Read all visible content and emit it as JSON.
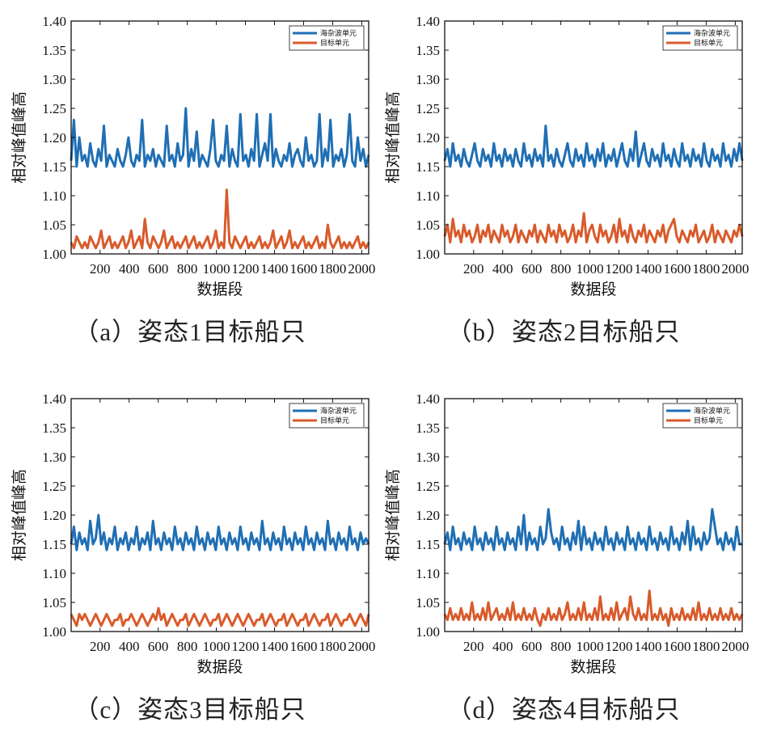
{
  "chart_data": [
    {
      "type": "line",
      "caption": "（a）姿态1目标船只",
      "xlabel": "数据段",
      "ylabel": "相对峰值峰高",
      "xlim": [
        1,
        2048
      ],
      "ylim": [
        1.0,
        1.4
      ],
      "xticks": [
        200,
        400,
        600,
        800,
        1000,
        1200,
        1400,
        1600,
        1800,
        2000
      ],
      "yticks": [
        "1.00",
        "1.05",
        "1.10",
        "1.15",
        "1.20",
        "1.25",
        "1.30",
        "1.35",
        "1.40"
      ],
      "grid": false,
      "legend": "top-right",
      "series": [
        {
          "name": "海杂波单元",
          "color": "#1f6fb4",
          "values": [
            1.16,
            1.23,
            1.15,
            1.2,
            1.16,
            1.17,
            1.15,
            1.19,
            1.16,
            1.15,
            1.18,
            1.16,
            1.22,
            1.15,
            1.17,
            1.16,
            1.15,
            1.18,
            1.16,
            1.15,
            1.17,
            1.2,
            1.16,
            1.15,
            1.17,
            1.16,
            1.23,
            1.15,
            1.17,
            1.16,
            1.18,
            1.15,
            1.17,
            1.16,
            1.15,
            1.22,
            1.16,
            1.17,
            1.15,
            1.19,
            1.16,
            1.17,
            1.25,
            1.15,
            1.18,
            1.16,
            1.21,
            1.15,
            1.17,
            1.16,
            1.15,
            1.18,
            1.23,
            1.16,
            1.15,
            1.17,
            1.16,
            1.22,
            1.15,
            1.18,
            1.16,
            1.15,
            1.24,
            1.16,
            1.17,
            1.15,
            1.18,
            1.16,
            1.24,
            1.15,
            1.17,
            1.19,
            1.16,
            1.24,
            1.15,
            1.18,
            1.16,
            1.15,
            1.17,
            1.16,
            1.19,
            1.15,
            1.17,
            1.18,
            1.16,
            1.15,
            1.2,
            1.16,
            1.17,
            1.15,
            1.16,
            1.24,
            1.15,
            1.18,
            1.16,
            1.23,
            1.15,
            1.17,
            1.16,
            1.18,
            1.15,
            1.17,
            1.24,
            1.16,
            1.15,
            1.2,
            1.16,
            1.18,
            1.15,
            1.17
          ]
        },
        {
          "name": "目标单元",
          "color": "#d95a2b",
          "values": [
            1.02,
            1.01,
            1.03,
            1.02,
            1.01,
            1.02,
            1.01,
            1.03,
            1.02,
            1.01,
            1.02,
            1.04,
            1.01,
            1.02,
            1.03,
            1.01,
            1.02,
            1.01,
            1.02,
            1.03,
            1.01,
            1.02,
            1.04,
            1.01,
            1.02,
            1.03,
            1.01,
            1.06,
            1.02,
            1.01,
            1.03,
            1.02,
            1.01,
            1.02,
            1.04,
            1.01,
            1.02,
            1.03,
            1.01,
            1.02,
            1.01,
            1.02,
            1.03,
            1.01,
            1.02,
            1.03,
            1.01,
            1.02,
            1.01,
            1.02,
            1.03,
            1.01,
            1.02,
            1.04,
            1.01,
            1.02,
            1.01,
            1.11,
            1.02,
            1.01,
            1.03,
            1.02,
            1.01,
            1.02,
            1.03,
            1.01,
            1.02,
            1.01,
            1.02,
            1.03,
            1.01,
            1.02,
            1.01,
            1.02,
            1.04,
            1.01,
            1.02,
            1.03,
            1.01,
            1.02,
            1.04,
            1.01,
            1.02,
            1.01,
            1.02,
            1.03,
            1.01,
            1.02,
            1.01,
            1.02,
            1.03,
            1.01,
            1.02,
            1.01,
            1.05,
            1.02,
            1.01,
            1.02,
            1.03,
            1.01,
            1.02,
            1.01,
            1.02,
            1.01,
            1.02,
            1.03,
            1.01,
            1.02,
            1.01,
            1.02
          ]
        }
      ]
    },
    {
      "type": "line",
      "caption": "（b）姿态2目标船只",
      "xlabel": "数据段",
      "ylabel": "相对峰值峰高",
      "xlim": [
        1,
        2048
      ],
      "ylim": [
        1.0,
        1.4
      ],
      "xticks": [
        200,
        400,
        600,
        800,
        1000,
        1200,
        1400,
        1600,
        1800,
        2000
      ],
      "yticks": [
        "1.00",
        "1.05",
        "1.10",
        "1.15",
        "1.20",
        "1.25",
        "1.30",
        "1.35",
        "1.40"
      ],
      "grid": false,
      "legend": "top-right",
      "series": [
        {
          "name": "海杂波单元",
          "color": "#1f6fb4",
          "values": [
            1.16,
            1.18,
            1.15,
            1.19,
            1.16,
            1.17,
            1.15,
            1.18,
            1.16,
            1.15,
            1.17,
            1.19,
            1.16,
            1.15,
            1.18,
            1.16,
            1.17,
            1.15,
            1.19,
            1.16,
            1.17,
            1.15,
            1.18,
            1.16,
            1.17,
            1.15,
            1.18,
            1.16,
            1.15,
            1.19,
            1.16,
            1.17,
            1.15,
            1.18,
            1.16,
            1.17,
            1.15,
            1.22,
            1.16,
            1.17,
            1.15,
            1.18,
            1.16,
            1.15,
            1.17,
            1.19,
            1.16,
            1.15,
            1.18,
            1.16,
            1.17,
            1.15,
            1.19,
            1.16,
            1.17,
            1.15,
            1.18,
            1.16,
            1.19,
            1.15,
            1.17,
            1.16,
            1.18,
            1.15,
            1.17,
            1.19,
            1.16,
            1.15,
            1.18,
            1.16,
            1.21,
            1.15,
            1.17,
            1.19,
            1.16,
            1.15,
            1.18,
            1.16,
            1.17,
            1.15,
            1.19,
            1.16,
            1.17,
            1.15,
            1.18,
            1.16,
            1.15,
            1.19,
            1.16,
            1.17,
            1.15,
            1.18,
            1.16,
            1.17,
            1.15,
            1.19,
            1.16,
            1.15,
            1.18,
            1.16,
            1.17,
            1.15,
            1.19,
            1.16,
            1.17,
            1.15,
            1.18,
            1.16,
            1.19,
            1.16
          ]
        },
        {
          "name": "目标单元",
          "color": "#d95a2b",
          "values": [
            1.03,
            1.05,
            1.02,
            1.06,
            1.03,
            1.04,
            1.02,
            1.05,
            1.03,
            1.04,
            1.02,
            1.03,
            1.05,
            1.02,
            1.04,
            1.03,
            1.05,
            1.02,
            1.04,
            1.03,
            1.02,
            1.05,
            1.03,
            1.04,
            1.02,
            1.03,
            1.05,
            1.02,
            1.04,
            1.03,
            1.02,
            1.04,
            1.03,
            1.05,
            1.02,
            1.04,
            1.03,
            1.02,
            1.05,
            1.03,
            1.04,
            1.02,
            1.05,
            1.03,
            1.04,
            1.02,
            1.03,
            1.05,
            1.02,
            1.04,
            1.03,
            1.07,
            1.02,
            1.04,
            1.05,
            1.03,
            1.02,
            1.05,
            1.03,
            1.04,
            1.02,
            1.03,
            1.05,
            1.02,
            1.06,
            1.03,
            1.04,
            1.02,
            1.05,
            1.03,
            1.02,
            1.04,
            1.03,
            1.05,
            1.02,
            1.04,
            1.03,
            1.02,
            1.04,
            1.03,
            1.05,
            1.02,
            1.04,
            1.05,
            1.06,
            1.03,
            1.02,
            1.04,
            1.03,
            1.02,
            1.04,
            1.03,
            1.05,
            1.02,
            1.03,
            1.04,
            1.02,
            1.03,
            1.05,
            1.02,
            1.04,
            1.03,
            1.02,
            1.04,
            1.03,
            1.02,
            1.04,
            1.03,
            1.05,
            1.03
          ]
        }
      ]
    },
    {
      "type": "line",
      "caption": "（c）姿态3目标船只",
      "xlabel": "数据段",
      "ylabel": "相对峰值峰高",
      "xlim": [
        1,
        2048
      ],
      "ylim": [
        1.0,
        1.4
      ],
      "xticks": [
        200,
        400,
        600,
        800,
        1000,
        1200,
        1400,
        1600,
        1800,
        2000
      ],
      "yticks": [
        "1.00",
        "1.05",
        "1.10",
        "1.15",
        "1.20",
        "1.25",
        "1.30",
        "1.35",
        "1.40"
      ],
      "grid": false,
      "legend": "top-right",
      "series": [
        {
          "name": "海杂波单元",
          "color": "#1f6fb4",
          "values": [
            1.15,
            1.18,
            1.14,
            1.17,
            1.15,
            1.16,
            1.14,
            1.19,
            1.15,
            1.16,
            1.2,
            1.15,
            1.17,
            1.14,
            1.16,
            1.15,
            1.18,
            1.14,
            1.16,
            1.15,
            1.17,
            1.14,
            1.16,
            1.15,
            1.18,
            1.14,
            1.16,
            1.15,
            1.17,
            1.14,
            1.19,
            1.15,
            1.16,
            1.14,
            1.17,
            1.15,
            1.16,
            1.14,
            1.18,
            1.15,
            1.16,
            1.14,
            1.17,
            1.15,
            1.16,
            1.14,
            1.18,
            1.15,
            1.16,
            1.14,
            1.17,
            1.15,
            1.16,
            1.14,
            1.18,
            1.15,
            1.16,
            1.14,
            1.17,
            1.15,
            1.16,
            1.14,
            1.18,
            1.15,
            1.16,
            1.14,
            1.17,
            1.15,
            1.16,
            1.14,
            1.19,
            1.15,
            1.16,
            1.14,
            1.17,
            1.15,
            1.16,
            1.14,
            1.18,
            1.15,
            1.16,
            1.14,
            1.17,
            1.15,
            1.16,
            1.14,
            1.18,
            1.15,
            1.16,
            1.14,
            1.17,
            1.15,
            1.16,
            1.14,
            1.19,
            1.15,
            1.16,
            1.14,
            1.17,
            1.15,
            1.16,
            1.14,
            1.18,
            1.15,
            1.16,
            1.14,
            1.17,
            1.15,
            1.16,
            1.15
          ]
        },
        {
          "name": "目标单元",
          "color": "#d95a2b",
          "values": [
            1.03,
            1.02,
            1.01,
            1.03,
            1.02,
            1.03,
            1.02,
            1.01,
            1.02,
            1.03,
            1.02,
            1.01,
            1.02,
            1.03,
            1.02,
            1.01,
            1.02,
            1.02,
            1.03,
            1.01,
            1.02,
            1.02,
            1.03,
            1.02,
            1.01,
            1.02,
            1.03,
            1.02,
            1.01,
            1.02,
            1.03,
            1.02,
            1.04,
            1.02,
            1.03,
            1.01,
            1.02,
            1.03,
            1.02,
            1.01,
            1.02,
            1.02,
            1.03,
            1.01,
            1.02,
            1.03,
            1.02,
            1.01,
            1.02,
            1.03,
            1.02,
            1.01,
            1.02,
            1.02,
            1.03,
            1.01,
            1.02,
            1.03,
            1.02,
            1.01,
            1.02,
            1.03,
            1.02,
            1.01,
            1.02,
            1.03,
            1.02,
            1.01,
            1.02,
            1.02,
            1.03,
            1.01,
            1.02,
            1.03,
            1.02,
            1.01,
            1.02,
            1.02,
            1.03,
            1.01,
            1.02,
            1.03,
            1.02,
            1.01,
            1.02,
            1.02,
            1.03,
            1.01,
            1.02,
            1.03,
            1.02,
            1.01,
            1.02,
            1.02,
            1.03,
            1.01,
            1.02,
            1.03,
            1.02,
            1.01,
            1.02,
            1.02,
            1.03,
            1.02,
            1.01,
            1.02,
            1.03,
            1.02,
            1.01,
            1.03
          ]
        }
      ]
    },
    {
      "type": "line",
      "caption": "（d）姿态4目标船只",
      "xlabel": "数据段",
      "ylabel": "相对峰值峰高",
      "xlim": [
        1,
        2048
      ],
      "ylim": [
        1.0,
        1.4
      ],
      "xticks": [
        200,
        400,
        600,
        800,
        1000,
        1200,
        1400,
        1600,
        1800,
        2000
      ],
      "yticks": [
        "1.00",
        "1.05",
        "1.10",
        "1.15",
        "1.20",
        "1.25",
        "1.30",
        "1.35",
        "1.40"
      ],
      "grid": false,
      "legend": "top-right",
      "series": [
        {
          "name": "海杂波单元",
          "color": "#1f6fb4",
          "values": [
            1.15,
            1.17,
            1.14,
            1.18,
            1.15,
            1.16,
            1.14,
            1.17,
            1.15,
            1.16,
            1.14,
            1.18,
            1.15,
            1.16,
            1.14,
            1.17,
            1.15,
            1.16,
            1.14,
            1.18,
            1.15,
            1.16,
            1.14,
            1.17,
            1.15,
            1.16,
            1.14,
            1.18,
            1.15,
            1.2,
            1.14,
            1.17,
            1.15,
            1.16,
            1.14,
            1.18,
            1.15,
            1.16,
            1.21,
            1.17,
            1.15,
            1.16,
            1.14,
            1.18,
            1.15,
            1.16,
            1.14,
            1.17,
            1.15,
            1.19,
            1.14,
            1.18,
            1.15,
            1.16,
            1.14,
            1.17,
            1.15,
            1.16,
            1.14,
            1.18,
            1.15,
            1.16,
            1.14,
            1.17,
            1.15,
            1.16,
            1.14,
            1.18,
            1.15,
            1.16,
            1.14,
            1.17,
            1.15,
            1.16,
            1.14,
            1.18,
            1.15,
            1.16,
            1.14,
            1.17,
            1.15,
            1.16,
            1.14,
            1.18,
            1.15,
            1.16,
            1.14,
            1.17,
            1.15,
            1.19,
            1.14,
            1.18,
            1.15,
            1.16,
            1.14,
            1.17,
            1.15,
            1.16,
            1.21,
            1.18,
            1.15,
            1.16,
            1.14,
            1.17,
            1.15,
            1.16,
            1.14,
            1.18,
            1.15,
            1.15
          ]
        },
        {
          "name": "目标单元",
          "color": "#d95a2b",
          "values": [
            1.03,
            1.02,
            1.04,
            1.02,
            1.03,
            1.02,
            1.04,
            1.02,
            1.03,
            1.02,
            1.05,
            1.02,
            1.03,
            1.02,
            1.04,
            1.02,
            1.05,
            1.02,
            1.03,
            1.04,
            1.02,
            1.03,
            1.02,
            1.04,
            1.02,
            1.05,
            1.02,
            1.03,
            1.02,
            1.04,
            1.02,
            1.03,
            1.02,
            1.04,
            1.02,
            1.01,
            1.03,
            1.02,
            1.04,
            1.02,
            1.03,
            1.02,
            1.04,
            1.02,
            1.03,
            1.05,
            1.02,
            1.03,
            1.02,
            1.04,
            1.02,
            1.05,
            1.02,
            1.03,
            1.02,
            1.04,
            1.02,
            1.06,
            1.02,
            1.03,
            1.02,
            1.04,
            1.02,
            1.05,
            1.02,
            1.03,
            1.04,
            1.02,
            1.06,
            1.03,
            1.02,
            1.04,
            1.02,
            1.03,
            1.02,
            1.07,
            1.02,
            1.03,
            1.02,
            1.04,
            1.02,
            1.03,
            1.01,
            1.04,
            1.02,
            1.03,
            1.02,
            1.04,
            1.02,
            1.03,
            1.02,
            1.04,
            1.02,
            1.05,
            1.02,
            1.03,
            1.02,
            1.04,
            1.02,
            1.03,
            1.02,
            1.04,
            1.02,
            1.03,
            1.02,
            1.04,
            1.02,
            1.03,
            1.02,
            1.03
          ]
        }
      ]
    }
  ]
}
